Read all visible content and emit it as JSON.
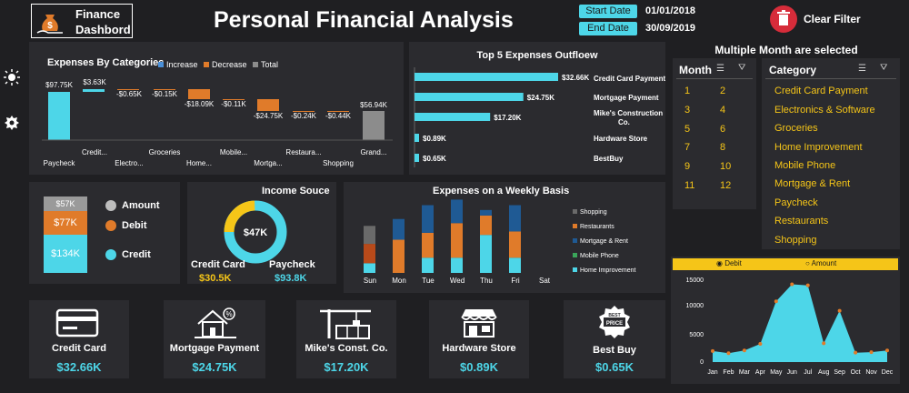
{
  "header": {
    "logo_line1": "Finance",
    "logo_line2": "Dashbord",
    "title": "Personal Financial Analysis",
    "start_label": "Start Date",
    "start_value": "01/01/2018",
    "end_label": "End Date",
    "end_value": "30/09/2019",
    "clear_filter": "Clear Filter"
  },
  "colors": {
    "cyan": "#4dd6e8",
    "orange": "#e07b2a",
    "yellow": "#f5c518",
    "gray": "#8c8c8c",
    "navy": "#1f5a94",
    "bg": "#1f1f22",
    "panel": "#2b2b2f"
  },
  "expenses_by_categories": {
    "title": "Expenses By Categories",
    "legend": [
      "Increase",
      "Decrease",
      "Total"
    ],
    "values": [
      "$97.75K",
      "$3.63K",
      "-$0.65K",
      "-$0.15K",
      "-$18.09K",
      "-$0.11K",
      "-$24.75K",
      "-$0.24K",
      "-$0.44K",
      "$56.94K"
    ],
    "labels_row1": [
      "Credit...",
      "Groceries",
      "Mobile...",
      "Restaura...",
      "Grand..."
    ],
    "labels_row2": [
      "Paycheck",
      "Electro...",
      "Home...",
      "Mortga...",
      "Shopping"
    ]
  },
  "top5": {
    "title": "Top 5 Expenses Outfloew",
    "items": [
      {
        "value": "$32.66K",
        "label": "Credit Card Payment",
        "amount": 32.66
      },
      {
        "value": "$24.75K",
        "label": "Mortgage Payment",
        "amount": 24.75
      },
      {
        "value": "$17.20K",
        "label": "Mike's Construction Co.",
        "amount": 17.2
      },
      {
        "value": "$0.89K",
        "label": "Hardware Store",
        "amount": 0.89
      },
      {
        "value": "$0.65K",
        "label": "BestBuy",
        "amount": 0.65
      }
    ]
  },
  "slicers": {
    "heading": "Multiple Month are selected",
    "month_title": "Month",
    "months": [
      "1",
      "2",
      "3",
      "4",
      "5",
      "6",
      "7",
      "8",
      "9",
      "10",
      "11",
      "12"
    ],
    "category_title": "Category",
    "categories": [
      "Credit Card Payment",
      "Electronics & Software",
      "Groceries",
      "Home Improvement",
      "Mobile Phone",
      "Mortgage & Rent",
      "Paycheck",
      "Restaurants",
      "Shopping"
    ]
  },
  "stack": {
    "values": [
      "$57K",
      "$77K",
      "$134K"
    ],
    "legend": [
      "Amount",
      "Debit",
      "Credit"
    ]
  },
  "income": {
    "title": "Income Souce",
    "center": "$47K",
    "left_label": "Credit Card",
    "left_value": "$30.5K",
    "right_label": "Paycheck",
    "right_value": "$93.8K",
    "share_credit": 0.245
  },
  "weekly": {
    "title": "Expenses on a Weekly Basis",
    "days": [
      "Sun",
      "Mon",
      "Tue",
      "Wed",
      "Thu",
      "Fri",
      "Sat"
    ],
    "legend": [
      "Shopping",
      "Restaurants",
      "Mortgage & Rent",
      "Mobile Phone",
      "Home Improvement"
    ],
    "series": [
      {
        "color": "#4dd6e8",
        "values": [
          14,
          0,
          22,
          22,
          55,
          22,
          0
        ]
      },
      {
        "color": "#e07b2a",
        "values": [
          0,
          48,
          36,
          50,
          28,
          38,
          0
        ]
      },
      {
        "color": "#b84a1a",
        "values": [
          28,
          0,
          0,
          0,
          0,
          0,
          0
        ]
      },
      {
        "color": "#1f5a94",
        "values": [
          0,
          30,
          40,
          34,
          8,
          38,
          0
        ]
      },
      {
        "color": "#6a6a6a",
        "values": [
          26,
          0,
          0,
          0,
          0,
          0,
          0
        ]
      }
    ]
  },
  "area_chart": {
    "radio_debit": "Debit",
    "radio_amount": "Amount",
    "months": [
      "Jan",
      "Feb",
      "Mar",
      "Apr",
      "May",
      "Jun",
      "Jul",
      "Aug",
      "Sep",
      "Oct",
      "Nov",
      "Dec"
    ],
    "yticks": [
      "15000",
      "10000",
      "5000",
      "0"
    ],
    "ymax": 15000,
    "values": [
      2000,
      1600,
      2100,
      3300,
      11000,
      14100,
      13900,
      3400,
      9300,
      1700,
      1800,
      2100
    ]
  },
  "kpis": [
    {
      "title": "Credit Card",
      "value": "$32.66K",
      "icon": "credit-card-icon"
    },
    {
      "title": "Mortgage Payment",
      "value": "$24.75K",
      "icon": "house-icon"
    },
    {
      "title": "Mike's  Const. Co.",
      "value": "$17.20K",
      "icon": "construction-icon"
    },
    {
      "title": "Hardware Store",
      "value": "$0.89K",
      "icon": "store-icon"
    },
    {
      "title": "Best Buy",
      "value": "$0.65K",
      "icon": "best-price-icon"
    }
  ],
  "sidebar": [
    "sun-icon",
    "gear-icon"
  ]
}
